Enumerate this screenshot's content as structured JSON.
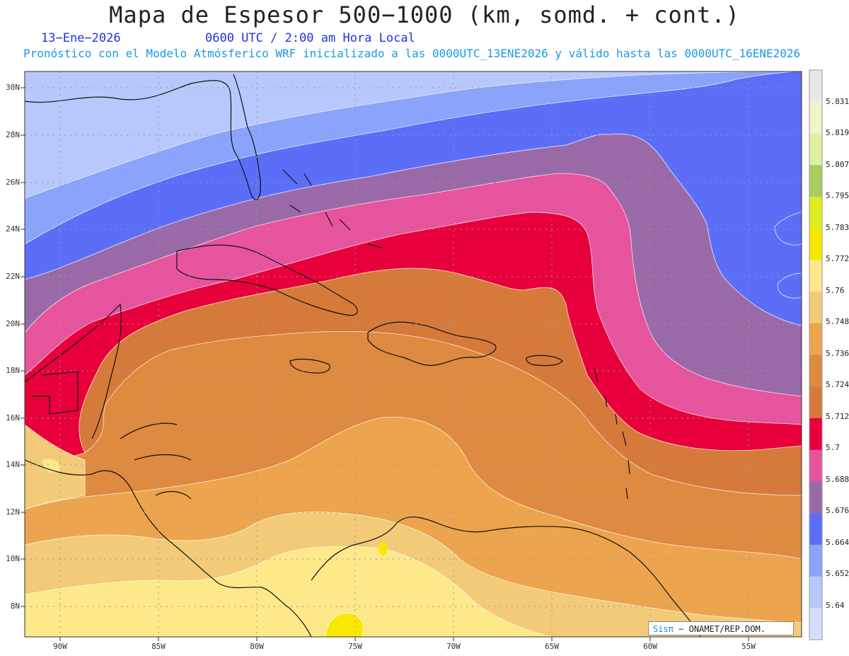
{
  "header": {
    "title": "Mapa de Espesor 500−1000 (km, somd. + cont.)",
    "date": "13−Ene−2026",
    "time": "0600 UTC / 2:00 am Hora Local",
    "forecast": "Pronóstico con el Modelo Atmósferico WRF inicializado a las 0000UTC_13ENE2026 y válido hasta las  0000UTC_16ENE2026"
  },
  "map": {
    "lat_labels": [
      "30N",
      "28N",
      "26N",
      "24N",
      "22N",
      "20N",
      "18N",
      "16N",
      "14N",
      "12N",
      "10N",
      "8N"
    ],
    "lon_labels": [
      "90W",
      "85W",
      "80W",
      "75W",
      "70W",
      "65W",
      "60W",
      "55W"
    ]
  },
  "colorbar": {
    "labels": [
      "5.831",
      "5.819",
      "5.807",
      "5.795",
      "5.783",
      "5.772",
      "5.76",
      "5.748",
      "5.736",
      "5.724",
      "5.712",
      "5.7",
      "5.688",
      "5.676",
      "5.664",
      "5.652",
      "5.64"
    ],
    "colors": [
      "#e8e8e8",
      "#f0f5c8",
      "#dff0a0",
      "#a8cc60",
      "#dded20",
      "#f8e800",
      "#fde88a",
      "#f2ca78",
      "#eca54e",
      "#de8a40",
      "#d67a3c",
      "#e8003c",
      "#e6549e",
      "#9a6aa8",
      "#5c6ef8",
      "#8aa4fc",
      "#b8c8fc",
      "#d4ddfc"
    ]
  },
  "credit": {
    "brand": "Sisπ",
    "text": "− ONAMET/REP.DOM."
  }
}
